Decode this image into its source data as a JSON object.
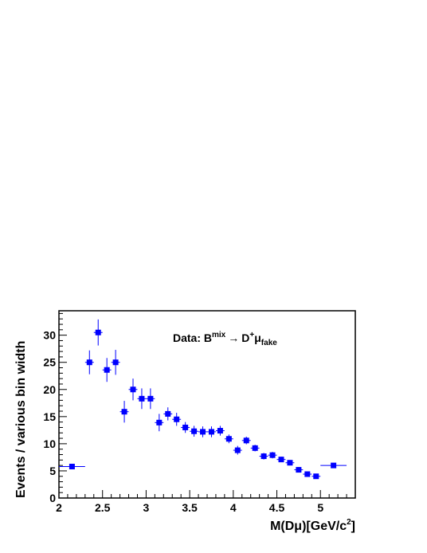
{
  "chart_data": {
    "type": "scatter",
    "title": "",
    "xlabel": {
      "main": "M(D",
      "mu": "μ",
      "mid": ")[GeV/c",
      "sup": "2",
      "end": "]"
    },
    "ylabel": "Events / various bin width",
    "xlim": [
      2.0,
      5.4
    ],
    "ylim": [
      0,
      34.5
    ],
    "grid": false,
    "legend": "none",
    "marker_color": "#0000ff",
    "x_ticks": [
      {
        "value": 2.0,
        "label": "2"
      },
      {
        "value": 2.5,
        "label": "2.5"
      },
      {
        "value": 3.0,
        "label": "3"
      },
      {
        "value": 3.5,
        "label": "3.5"
      },
      {
        "value": 4.0,
        "label": "4"
      },
      {
        "value": 4.5,
        "label": "4.5"
      },
      {
        "value": 5.0,
        "label": "5"
      }
    ],
    "y_ticks": [
      {
        "value": 0,
        "label": "0"
      },
      {
        "value": 5,
        "label": "5"
      },
      {
        "value": 10,
        "label": "10"
      },
      {
        "value": 15,
        "label": "15"
      },
      {
        "value": 20,
        "label": "20"
      },
      {
        "value": 25,
        "label": "25"
      },
      {
        "value": 30,
        "label": "30"
      }
    ],
    "annotation": {
      "prefix": "Data: B",
      "sup1": "mix",
      "arrow": "→",
      "d": "D",
      "sup2": "+",
      "mu": "μ",
      "sub": "fake"
    },
    "series": [
      {
        "points": [
          {
            "x": 2.15,
            "xlo": 2.0,
            "xhi": 2.3,
            "y": 5.8,
            "yerr": 0.5
          },
          {
            "x": 2.35,
            "xlo": 2.3,
            "xhi": 2.4,
            "y": 25.0,
            "yerr": 2.2
          },
          {
            "x": 2.45,
            "xlo": 2.4,
            "xhi": 2.5,
            "y": 30.5,
            "yerr": 2.4
          },
          {
            "x": 2.55,
            "xlo": 2.5,
            "xhi": 2.6,
            "y": 23.6,
            "yerr": 2.2
          },
          {
            "x": 2.65,
            "xlo": 2.6,
            "xhi": 2.7,
            "y": 25.0,
            "yerr": 2.3
          },
          {
            "x": 2.75,
            "xlo": 2.7,
            "xhi": 2.8,
            "y": 15.9,
            "yerr": 2.0
          },
          {
            "x": 2.85,
            "xlo": 2.8,
            "xhi": 2.9,
            "y": 20.0,
            "yerr": 2.0
          },
          {
            "x": 2.95,
            "xlo": 2.9,
            "xhi": 3.0,
            "y": 18.3,
            "yerr": 1.9
          },
          {
            "x": 3.05,
            "xlo": 3.0,
            "xhi": 3.1,
            "y": 18.3,
            "yerr": 1.9
          },
          {
            "x": 3.15,
            "xlo": 3.1,
            "xhi": 3.2,
            "y": 13.9,
            "yerr": 1.6
          },
          {
            "x": 3.25,
            "xlo": 3.2,
            "xhi": 3.3,
            "y": 15.5,
            "yerr": 1.2
          },
          {
            "x": 3.35,
            "xlo": 3.3,
            "xhi": 3.4,
            "y": 14.5,
            "yerr": 1.2
          },
          {
            "x": 3.45,
            "xlo": 3.4,
            "xhi": 3.5,
            "y": 13.0,
            "yerr": 1.0
          },
          {
            "x": 3.55,
            "xlo": 3.5,
            "xhi": 3.6,
            "y": 12.3,
            "yerr": 1.0
          },
          {
            "x": 3.65,
            "xlo": 3.6,
            "xhi": 3.7,
            "y": 12.2,
            "yerr": 1.0
          },
          {
            "x": 3.75,
            "xlo": 3.7,
            "xhi": 3.8,
            "y": 12.2,
            "yerr": 1.0
          },
          {
            "x": 3.85,
            "xlo": 3.8,
            "xhi": 3.9,
            "y": 12.4,
            "yerr": 0.9
          },
          {
            "x": 3.95,
            "xlo": 3.9,
            "xhi": 4.0,
            "y": 10.9,
            "yerr": 0.8
          },
          {
            "x": 4.05,
            "xlo": 4.0,
            "xhi": 4.1,
            "y": 8.8,
            "yerr": 0.8
          },
          {
            "x": 4.15,
            "xlo": 4.1,
            "xhi": 4.2,
            "y": 10.6,
            "yerr": 0.7
          },
          {
            "x": 4.25,
            "xlo": 4.2,
            "xhi": 4.3,
            "y": 9.2,
            "yerr": 0.6
          },
          {
            "x": 4.35,
            "xlo": 4.3,
            "xhi": 4.4,
            "y": 7.7,
            "yerr": 0.6
          },
          {
            "x": 4.45,
            "xlo": 4.4,
            "xhi": 4.5,
            "y": 7.9,
            "yerr": 0.6
          },
          {
            "x": 4.55,
            "xlo": 4.5,
            "xhi": 4.6,
            "y": 7.1,
            "yerr": 0.5
          },
          {
            "x": 4.65,
            "xlo": 4.6,
            "xhi": 4.7,
            "y": 6.5,
            "yerr": 0.5
          },
          {
            "x": 4.75,
            "xlo": 4.7,
            "xhi": 4.8,
            "y": 5.2,
            "yerr": 0.5
          },
          {
            "x": 4.85,
            "xlo": 4.8,
            "xhi": 4.9,
            "y": 4.4,
            "yerr": 0.4
          },
          {
            "x": 4.95,
            "xlo": 4.9,
            "xhi": 5.0,
            "y": 4.0,
            "yerr": 0.4
          },
          {
            "x": 5.15,
            "xlo": 5.0,
            "xhi": 5.3,
            "y": 6.0,
            "yerr": 0.4
          }
        ]
      }
    ]
  }
}
